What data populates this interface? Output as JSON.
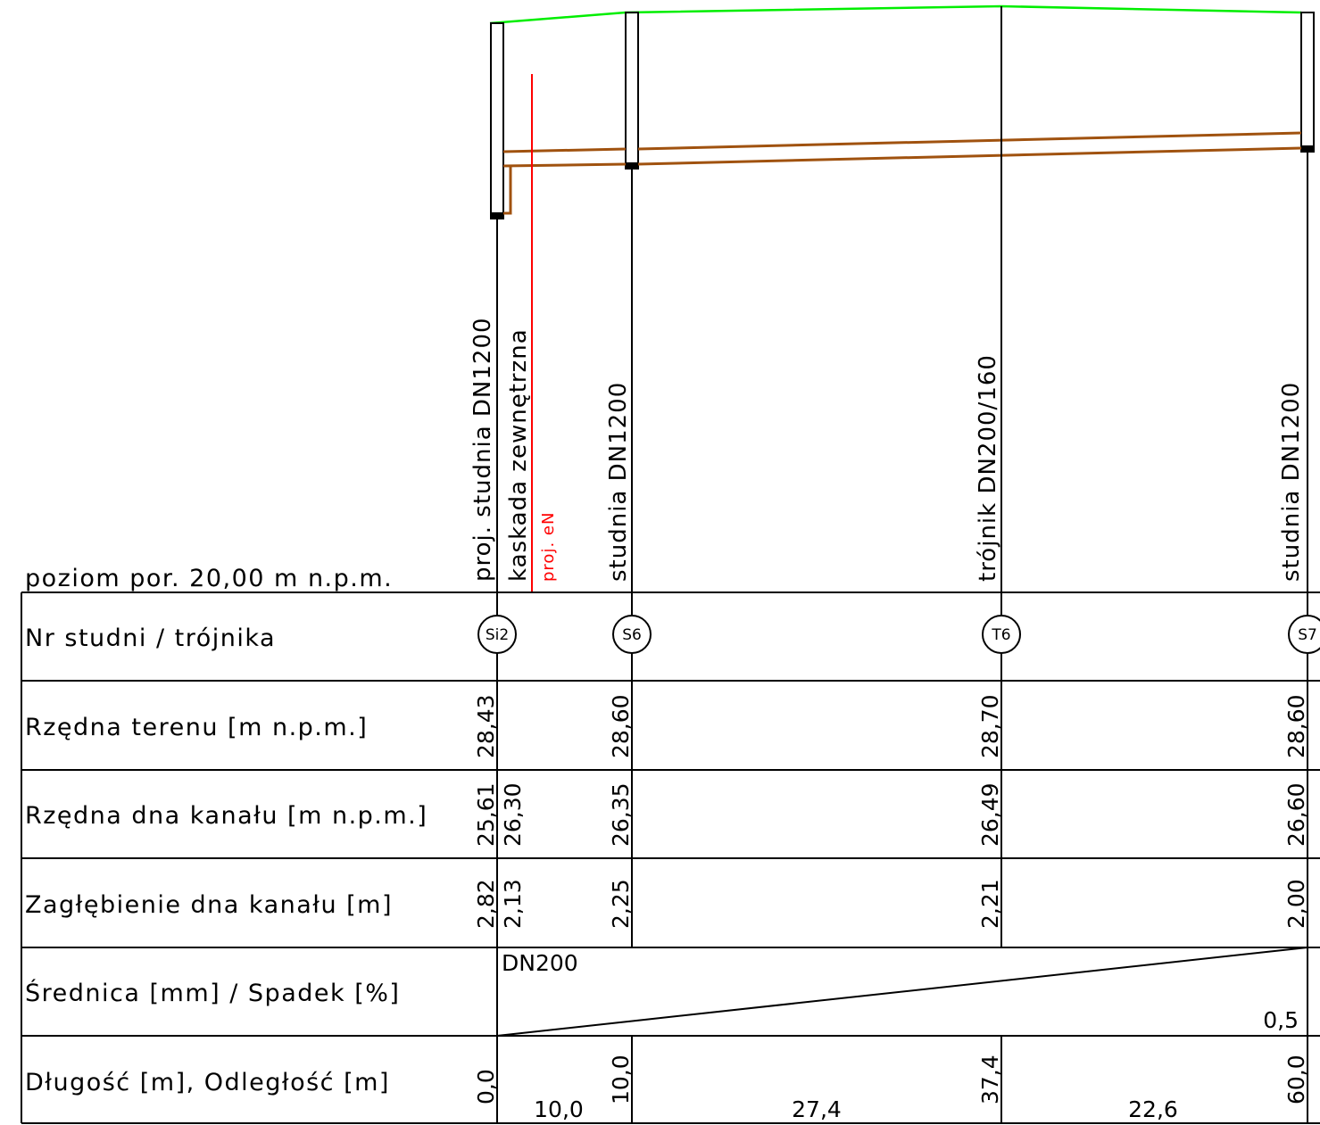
{
  "reference_level": "poziom por. 20,00 m n.p.m.",
  "row_labels": {
    "well_number": "Nr studni / trójnika",
    "ground_level": "Rzędna terenu [m n.p.m.]",
    "invert_level": "Rzędna dna kanału [m n.p.m.]",
    "invert_depth": "Zagłębienie dna kanału [m]",
    "diameter_slope": "Średnica [mm] / Spadek [%]",
    "length_distance": "Długość [m], Odległość [m]"
  },
  "nodes": [
    {
      "id": "Si2",
      "description": "proj. studnia DN1200",
      "ground": "28,43",
      "invert": "25,61",
      "depth": "2,82",
      "chainage": "0,0"
    },
    {
      "id": "",
      "description": "kaskada zewnętrzna",
      "ground": "",
      "invert": "26,30",
      "depth": "2,13",
      "chainage": ""
    },
    {
      "id": "S6",
      "description": "studnia DN1200",
      "ground": "28,60",
      "invert": "26,35",
      "depth": "2,25",
      "chainage": "10,0"
    },
    {
      "id": "T6",
      "description": "trójnik DN200/160",
      "ground": "28,70",
      "invert": "26,49",
      "depth": "2,21",
      "chainage": "37,4"
    },
    {
      "id": "S7",
      "description": "studnia DN1200",
      "ground": "28,60",
      "invert": "26,60",
      "depth": "2,00",
      "chainage": "60,0"
    }
  ],
  "crossing": {
    "label": "proj. eN",
    "color": "#ff0000"
  },
  "segment_lengths": [
    "10,0",
    "27,4",
    "22,6"
  ],
  "pipe": {
    "diameter": "DN200",
    "slope": "0,5"
  },
  "colors": {
    "terrain": "#00ee00",
    "pipe": "#a0520f",
    "line": "#000000"
  }
}
